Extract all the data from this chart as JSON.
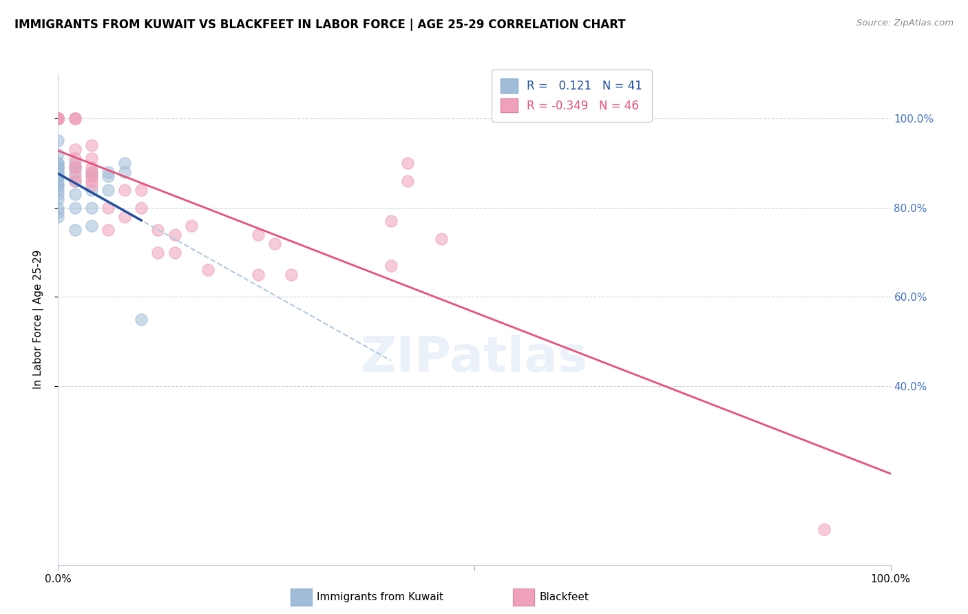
{
  "title": "IMMIGRANTS FROM KUWAIT VS BLACKFEET IN LABOR FORCE | AGE 25-29 CORRELATION CHART",
  "source": "Source: ZipAtlas.com",
  "ylabel": "In Labor Force | Age 25-29",
  "xlim": [
    0.0,
    1.0
  ],
  "ylim": [
    0.0,
    1.1
  ],
  "plot_ylim": [
    0.0,
    1.1
  ],
  "xtick_positions": [
    0.0,
    0.5,
    1.0
  ],
  "xtick_labels": [
    "0.0%",
    "",
    "100.0%"
  ],
  "ytick_positions": [
    0.4,
    0.6,
    0.8,
    1.0
  ],
  "ytick_labels": [
    "40.0%",
    "60.0%",
    "80.0%",
    "100.0%"
  ],
  "kuwait_color": "#a0bcd8",
  "blackfeet_color": "#f0a0b8",
  "kuwait_line_color": "#2050a0",
  "blackfeet_line_color": "#e8507a",
  "kuwait_dash_color": "#b0c8e0",
  "R_kuwait": 0.121,
  "N_kuwait": 41,
  "R_blackfeet": -0.349,
  "N_blackfeet": 46,
  "grid_color": "#c8d4e4",
  "background_color": "#ffffff",
  "kuwait_x": [
    0.0,
    0.0,
    0.0,
    0.0,
    0.0,
    0.0,
    0.0,
    0.0,
    0.0,
    0.0,
    0.0,
    0.0,
    0.0,
    0.0,
    0.0,
    0.0,
    0.0,
    0.0,
    0.0,
    0.0,
    0.0,
    0.0,
    0.0,
    0.02,
    0.02,
    0.02,
    0.02,
    0.02,
    0.02,
    0.02,
    0.04,
    0.04,
    0.04,
    0.04,
    0.04,
    0.06,
    0.06,
    0.06,
    0.08,
    0.08,
    0.1
  ],
  "kuwait_y": [
    1.0,
    1.0,
    0.95,
    0.92,
    0.9,
    0.9,
    0.89,
    0.89,
    0.89,
    0.88,
    0.88,
    0.87,
    0.87,
    0.87,
    0.86,
    0.85,
    0.85,
    0.84,
    0.83,
    0.82,
    0.8,
    0.79,
    0.78,
    0.9,
    0.89,
    0.88,
    0.86,
    0.83,
    0.8,
    0.75,
    0.88,
    0.87,
    0.84,
    0.8,
    0.76,
    0.88,
    0.87,
    0.84,
    0.9,
    0.88,
    0.55
  ],
  "blackfeet_x": [
    0.0,
    0.0,
    0.0,
    0.0,
    0.0,
    0.0,
    0.0,
    0.0,
    0.02,
    0.02,
    0.02,
    0.02,
    0.02,
    0.02,
    0.02,
    0.02,
    0.02,
    0.04,
    0.04,
    0.04,
    0.04,
    0.04,
    0.04,
    0.04,
    0.06,
    0.06,
    0.08,
    0.08,
    0.1,
    0.1,
    0.12,
    0.12,
    0.14,
    0.14,
    0.16,
    0.18,
    0.24,
    0.24,
    0.26,
    0.28,
    0.4,
    0.4,
    0.42,
    0.42,
    0.46,
    0.92
  ],
  "blackfeet_y": [
    1.0,
    1.0,
    1.0,
    1.0,
    1.0,
    1.0,
    1.0,
    1.0,
    1.0,
    1.0,
    1.0,
    0.93,
    0.91,
    0.89,
    0.89,
    0.87,
    0.86,
    0.94,
    0.91,
    0.89,
    0.88,
    0.87,
    0.86,
    0.85,
    0.8,
    0.75,
    0.84,
    0.78,
    0.84,
    0.8,
    0.75,
    0.7,
    0.74,
    0.7,
    0.76,
    0.66,
    0.74,
    0.65,
    0.72,
    0.65,
    0.77,
    0.67,
    0.9,
    0.86,
    0.73,
    0.08
  ]
}
